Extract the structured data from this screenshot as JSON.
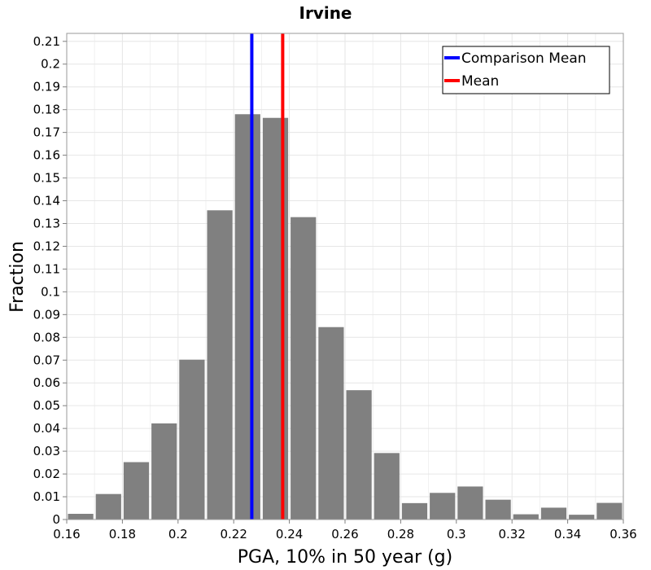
{
  "chart_data": {
    "type": "bar",
    "title": "Irvine",
    "xlabel": "PGA, 10% in 50 year (g)",
    "ylabel": "Fraction",
    "xlim": [
      0.16,
      0.36
    ],
    "ylim": [
      0,
      0.2135
    ],
    "grid": true,
    "bar_color": "#808080",
    "bin_width": 0.01,
    "bins": [
      {
        "center": 0.165,
        "value": 0.0025
      },
      {
        "center": 0.175,
        "value": 0.0112
      },
      {
        "center": 0.185,
        "value": 0.0252
      },
      {
        "center": 0.195,
        "value": 0.0422
      },
      {
        "center": 0.205,
        "value": 0.0702
      },
      {
        "center": 0.215,
        "value": 0.1358
      },
      {
        "center": 0.225,
        "value": 0.178
      },
      {
        "center": 0.235,
        "value": 0.1764
      },
      {
        "center": 0.245,
        "value": 0.1328
      },
      {
        "center": 0.255,
        "value": 0.0845
      },
      {
        "center": 0.265,
        "value": 0.0568
      },
      {
        "center": 0.275,
        "value": 0.0292
      },
      {
        "center": 0.285,
        "value": 0.0072
      },
      {
        "center": 0.295,
        "value": 0.0117
      },
      {
        "center": 0.305,
        "value": 0.0145
      },
      {
        "center": 0.315,
        "value": 0.0087
      },
      {
        "center": 0.325,
        "value": 0.0023
      },
      {
        "center": 0.335,
        "value": 0.0052
      },
      {
        "center": 0.345,
        "value": 0.0021
      },
      {
        "center": 0.355,
        "value": 0.0073
      }
    ],
    "vertical_lines": [
      {
        "name": "Comparison Mean",
        "x": 0.2265,
        "color": "#0000ff"
      },
      {
        "name": "Mean",
        "x": 0.2376,
        "color": "#ff0000"
      }
    ],
    "legend": {
      "placement": "top-right",
      "entries": [
        {
          "label": "Comparison Mean",
          "color": "#0000ff"
        },
        {
          "label": "Mean",
          "color": "#ff0000"
        }
      ]
    },
    "x_ticks": [
      {
        "value": 0.16,
        "label": "0.16"
      },
      {
        "value": 0.18,
        "label": "0.18"
      },
      {
        "value": 0.2,
        "label": "0.2"
      },
      {
        "value": 0.22,
        "label": "0.22"
      },
      {
        "value": 0.24,
        "label": "0.24"
      },
      {
        "value": 0.26,
        "label": "0.26"
      },
      {
        "value": 0.28,
        "label": "0.28"
      },
      {
        "value": 0.3,
        "label": "0.3"
      },
      {
        "value": 0.32,
        "label": "0.32"
      },
      {
        "value": 0.34,
        "label": "0.34"
      },
      {
        "value": 0.36,
        "label": "0.36"
      }
    ],
    "y_ticks": [
      {
        "value": 0,
        "label": "0"
      },
      {
        "value": 0.01,
        "label": "0.01"
      },
      {
        "value": 0.02,
        "label": "0.02"
      },
      {
        "value": 0.03,
        "label": "0.03"
      },
      {
        "value": 0.04,
        "label": "0.04"
      },
      {
        "value": 0.05,
        "label": "0.05"
      },
      {
        "value": 0.06,
        "label": "0.06"
      },
      {
        "value": 0.07,
        "label": "0.07"
      },
      {
        "value": 0.08,
        "label": "0.08"
      },
      {
        "value": 0.09,
        "label": "0.09"
      },
      {
        "value": 0.1,
        "label": "0.1"
      },
      {
        "value": 0.11,
        "label": "0.11"
      },
      {
        "value": 0.12,
        "label": "0.12"
      },
      {
        "value": 0.13,
        "label": "0.13"
      },
      {
        "value": 0.14,
        "label": "0.14"
      },
      {
        "value": 0.15,
        "label": "0.15"
      },
      {
        "value": 0.16,
        "label": "0.16"
      },
      {
        "value": 0.17,
        "label": "0.17"
      },
      {
        "value": 0.18,
        "label": "0.18"
      },
      {
        "value": 0.19,
        "label": "0.19"
      },
      {
        "value": 0.2,
        "label": "0.2"
      },
      {
        "value": 0.21,
        "label": "0.21"
      }
    ]
  }
}
